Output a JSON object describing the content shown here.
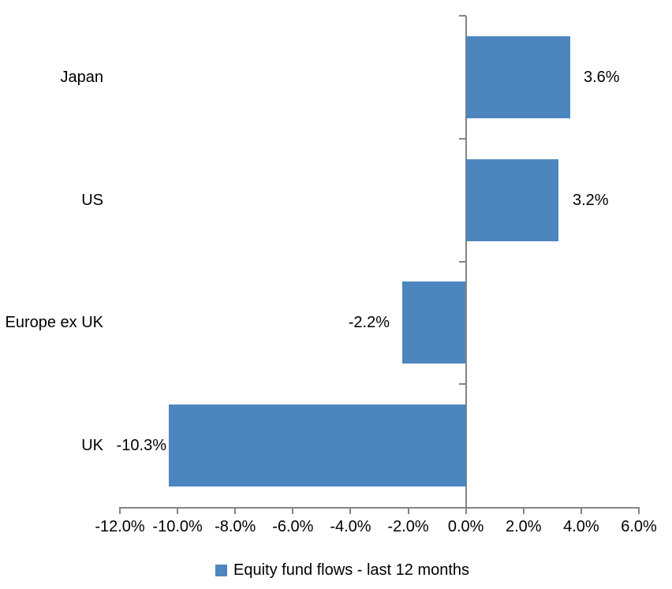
{
  "chart_data": {
    "type": "bar",
    "orientation": "horizontal",
    "title": "",
    "categories": [
      "Japan",
      "US",
      "Europe ex UK",
      "UK"
    ],
    "values": [
      3.6,
      3.2,
      -2.2,
      -10.3
    ],
    "data_labels": [
      "3.6%",
      "3.2%",
      "-2.2%",
      "-10.3%"
    ],
    "series_name": "Equity fund flows - last 12 months",
    "xlabel": "",
    "ylabel": "",
    "xlim": [
      -12,
      6
    ],
    "x_tick_step": 2,
    "x_tick_labels": [
      "-12.0%",
      "-10.0%",
      "-8.0%",
      "-6.0%",
      "-4.0%",
      "-2.0%",
      "0.0%",
      "2.0%",
      "4.0%",
      "6.0%"
    ],
    "grid": false,
    "legend_position": "bottom",
    "colors": {
      "bar": "#4D86BE",
      "axis": "#848484",
      "text": "#000000",
      "background": "#FFFFFF"
    }
  },
  "legend": {
    "label": "Equity fund flows - last 12 months"
  }
}
